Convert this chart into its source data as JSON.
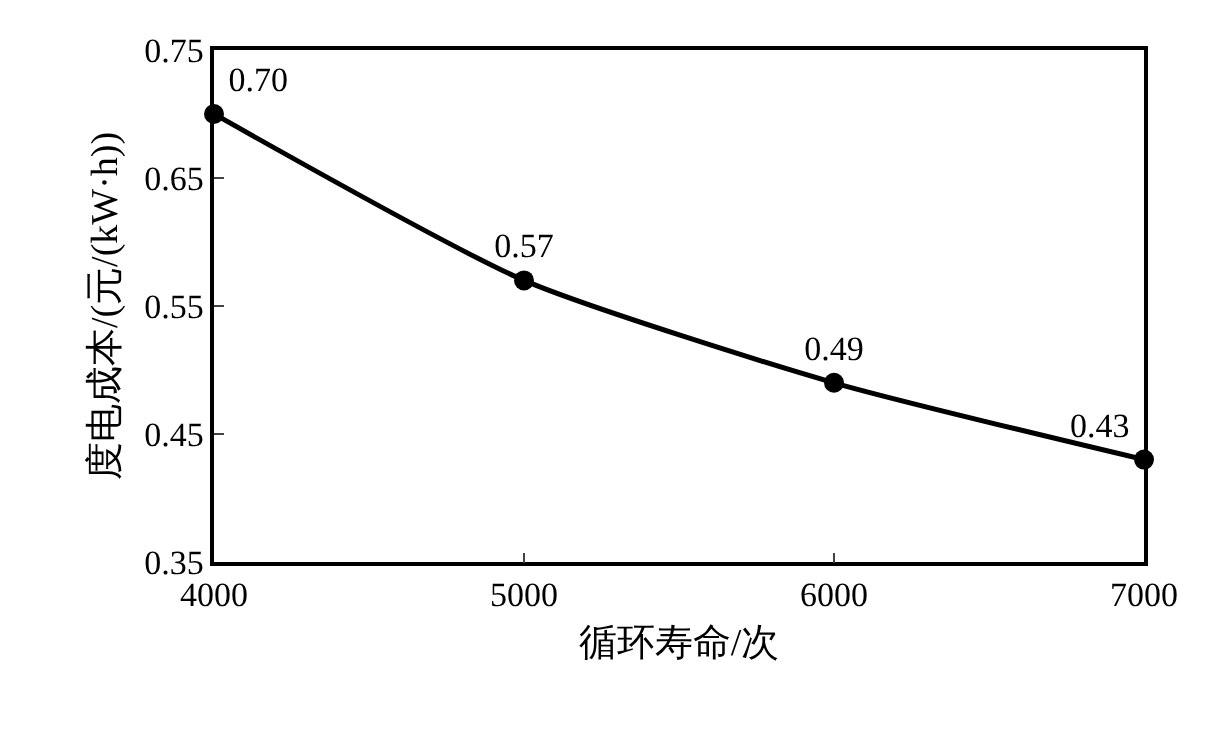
{
  "chart_data": {
    "type": "line",
    "xlabel": "循环寿命/次",
    "ylabel": "度电成本/(元/(kW·h))",
    "x": [
      4000,
      5000,
      6000,
      7000
    ],
    "series": [
      {
        "color": "#000000",
        "values": [
          0.7,
          0.57,
          0.49,
          0.43
        ],
        "value_labels": [
          "0.70",
          "0.57",
          "0.49",
          "0.43"
        ]
      }
    ],
    "xlim": [
      4000,
      7000
    ],
    "xticks": [
      4000,
      5000,
      6000,
      7000
    ],
    "ylim": [
      0.35,
      0.75
    ],
    "yticks": [
      {
        "value": 0.35,
        "label": "0.35"
      },
      {
        "value": 0.45,
        "label": "0.45"
      },
      {
        "value": 0.55,
        "label": "0.55"
      },
      {
        "value": 0.65,
        "label": "0.65"
      },
      {
        "value": 0.75,
        "label": "0.75"
      }
    ],
    "grid": false,
    "marker": "circle",
    "line_style": "solid"
  }
}
